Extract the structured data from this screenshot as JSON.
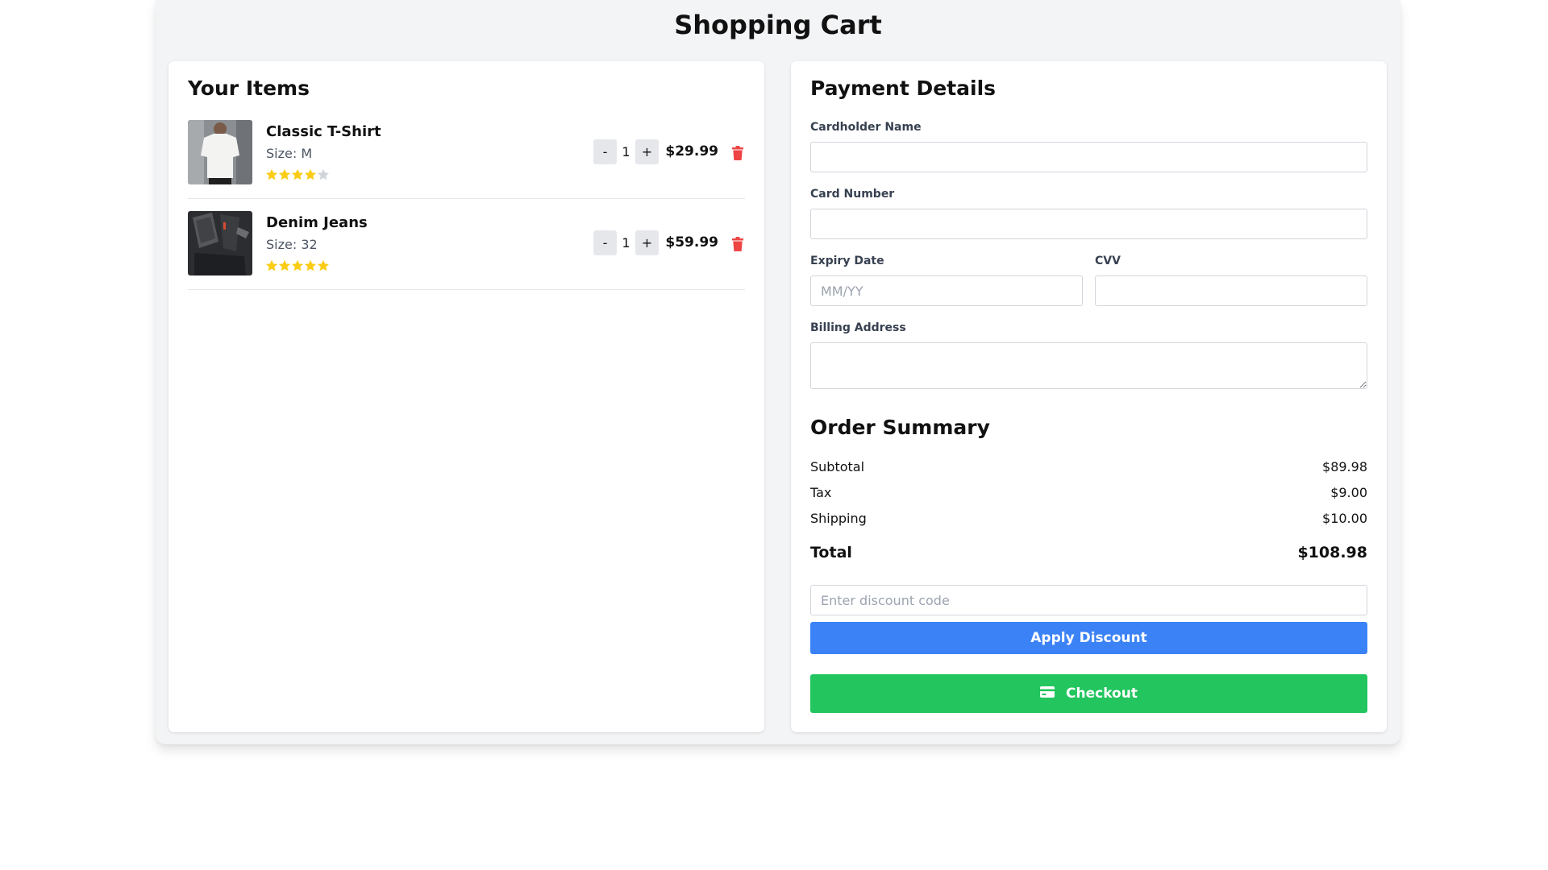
{
  "page": {
    "title": "Shopping Cart"
  },
  "cart": {
    "heading": "Your Items",
    "items": [
      {
        "name": "Classic T-Shirt",
        "size": "Size: M",
        "quantity": "1",
        "price": "$29.99",
        "rating": 4,
        "rating_max": 5,
        "image_icon": "white-tshirt-photo",
        "decrement": "-",
        "increment": "+"
      },
      {
        "name": "Denim Jeans",
        "size": "Size: 32",
        "quantity": "1",
        "price": "$59.99",
        "rating": 5,
        "rating_max": 5,
        "image_icon": "dark-jeans-photo",
        "decrement": "-",
        "increment": "+"
      }
    ]
  },
  "payment": {
    "heading": "Payment Details",
    "cardholder_label": "Cardholder Name",
    "cardholder_value": "",
    "card_number_label": "Card Number",
    "card_number_value": "",
    "expiry_label": "Expiry Date",
    "expiry_placeholder": "MM/YY",
    "cvv_label": "CVV",
    "cvv_value": "",
    "billing_label": "Billing Address",
    "billing_value": ""
  },
  "summary": {
    "heading": "Order Summary",
    "subtotal_label": "Subtotal",
    "subtotal_value": "$89.98",
    "tax_label": "Tax",
    "tax_value": "$9.00",
    "shipping_label": "Shipping",
    "shipping_value": "$10.00",
    "total_label": "Total",
    "total_value": "$108.98",
    "discount_placeholder": "Enter discount code",
    "apply_label": "Apply Discount",
    "checkout_label": "Checkout",
    "checkout_icon": "credit-card-icon"
  },
  "colors": {
    "star_filled": "#facc15",
    "star_empty": "#d1d5db",
    "delete": "#ef4444",
    "apply_button": "#3b82f6",
    "checkout_button": "#22c55e",
    "app_background": "#f3f4f6"
  }
}
